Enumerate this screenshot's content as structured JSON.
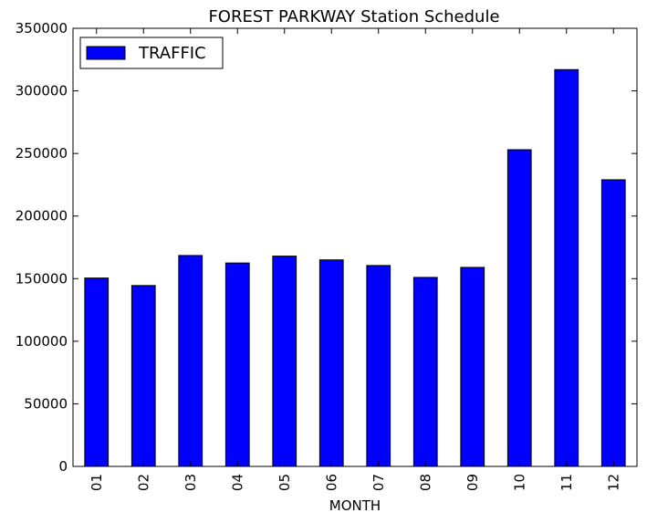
{
  "chart_data": {
    "type": "bar",
    "title": "FOREST PARKWAY Station Schedule",
    "xlabel": "MONTH",
    "ylabel": "",
    "categories": [
      "01",
      "02",
      "03",
      "04",
      "05",
      "06",
      "07",
      "08",
      "09",
      "10",
      "11",
      "12"
    ],
    "series": [
      {
        "name": "TRAFFIC",
        "values": [
          150500,
          144500,
          168500,
          162500,
          168000,
          165000,
          160500,
          151000,
          159000,
          253000,
          317000,
          229000
        ]
      }
    ],
    "ylim": [
      0,
      350000
    ],
    "yticks": [
      "0",
      "50000",
      "100000",
      "150000",
      "200000",
      "250000",
      "300000",
      "350000"
    ],
    "grid": false,
    "legend_position": "top-left",
    "colors": {
      "bar_fill": "#0000ff",
      "bar_edge": "#000000",
      "axes": "#000000",
      "background": "#ffffff"
    }
  }
}
